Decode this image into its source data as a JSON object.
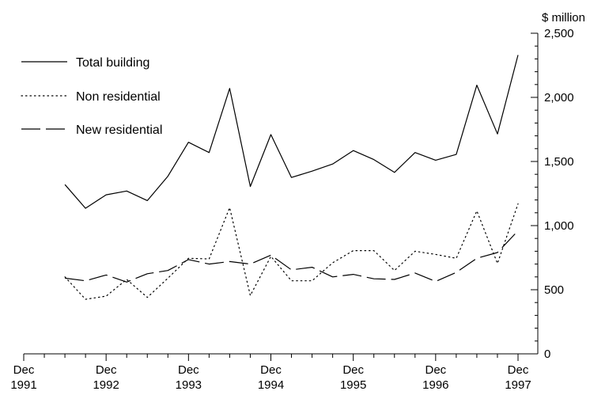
{
  "chart_data": {
    "type": "line",
    "title": "",
    "xlabel": "",
    "ylabel": "",
    "y_unit_label": "$ million",
    "ylim": [
      0,
      2500
    ],
    "y_ticks": [
      {
        "value": 0,
        "label": "0"
      },
      {
        "value": 500,
        "label": "500"
      },
      {
        "value": 1000,
        "label": "1,000"
      },
      {
        "value": 1500,
        "label": "1,500"
      },
      {
        "value": 2000,
        "label": "2,000"
      },
      {
        "value": 2500,
        "label": "2,500"
      }
    ],
    "x_ticks": [
      {
        "label_top": "Dec",
        "label_bottom": "1991"
      },
      {
        "label_top": "Dec",
        "label_bottom": "1992"
      },
      {
        "label_top": "Dec",
        "label_bottom": "1993"
      },
      {
        "label_top": "Dec",
        "label_bottom": "1994"
      },
      {
        "label_top": "Dec",
        "label_bottom": "1995"
      },
      {
        "label_top": "Dec",
        "label_bottom": "1996"
      },
      {
        "label_top": "Dec",
        "label_bottom": "1997"
      }
    ],
    "legend_position": "top-left",
    "x": [
      "Jun 1992",
      "Sep 1992",
      "Dec 1992",
      "Mar 1993",
      "Jun 1993",
      "Sep 1993",
      "Dec 1993",
      "Mar 1994",
      "Jun 1994",
      "Sep 1994",
      "Dec 1994",
      "Mar 1995",
      "Jun 1995",
      "Sep 1995",
      "Dec 1995",
      "Mar 1996",
      "Jun 1996",
      "Sep 1996",
      "Dec 1996",
      "Mar 1997",
      "Jun 1997",
      "Sep 1997",
      "Dec 1997"
    ],
    "series": [
      {
        "name": "Total building",
        "style": "solid",
        "values": [
          1320,
          1135,
          1240,
          1270,
          1195,
          1385,
          1650,
          1570,
          2070,
          1305,
          1710,
          1375,
          1425,
          1480,
          1585,
          1515,
          1415,
          1570,
          1510,
          1555,
          2095,
          1715,
          2330
        ]
      },
      {
        "name": "Non residential",
        "style": "dotted",
        "values": [
          600,
          425,
          450,
          580,
          440,
          590,
          745,
          740,
          1140,
          455,
          760,
          570,
          570,
          710,
          805,
          805,
          650,
          800,
          775,
          745,
          1115,
          705,
          1170
        ]
      },
      {
        "name": "New residential",
        "style": "dashed",
        "values": [
          590,
          570,
          615,
          560,
          625,
          650,
          735,
          700,
          720,
          700,
          770,
          655,
          675,
          600,
          620,
          585,
          580,
          630,
          565,
          635,
          745,
          790,
          960
        ]
      }
    ]
  }
}
